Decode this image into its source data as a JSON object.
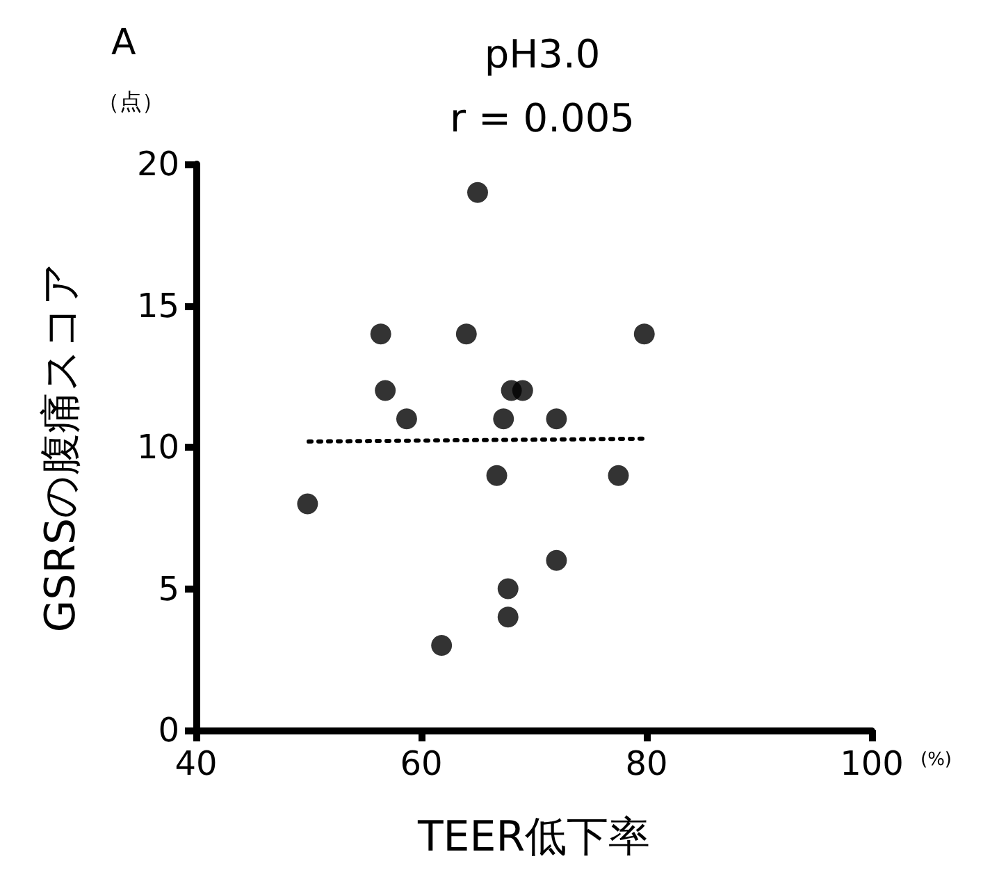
{
  "chart_data": {
    "type": "scatter",
    "title": "pH3.0",
    "subtitle": "r = 0.005",
    "xlabel": "TEER低下率",
    "ylabel": "GSRSの腹痛スコア",
    "annotations": [
      "A",
      "（点）",
      "(%)"
    ],
    "xlim": [
      40,
      100
    ],
    "xticks": [
      40,
      60,
      80,
      100
    ],
    "ylim": [
      0,
      20
    ],
    "yticks": [
      0,
      5,
      10,
      15,
      20
    ],
    "grid": false,
    "marker": "circle",
    "series": [
      {
        "color": "#000000",
        "x": [
          49.9,
          56.4,
          56.8,
          58.7,
          61.8,
          64.0,
          65.0,
          66.7,
          67.3,
          67.7,
          67.7,
          68.0,
          69.0,
          72.0,
          72.0,
          77.5,
          79.8
        ],
        "values": [
          8,
          14,
          12,
          11,
          3,
          14,
          19,
          9,
          11,
          5,
          4,
          12,
          12,
          11,
          6,
          9,
          14
        ]
      },
      {
        "type": "line",
        "color": "#000000",
        "line_style": "dotted",
        "marker": "none",
        "x": [
          50,
          79.8
        ],
        "values": [
          10.2,
          10.3
        ]
      }
    ]
  }
}
